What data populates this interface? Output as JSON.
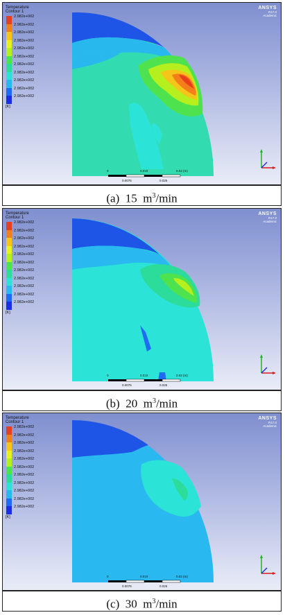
{
  "panels": [
    {
      "legend": {
        "title": "Temperature",
        "subtitle": "Contour 1",
        "labels": [
          "2.982e+002",
          "2.982e+002",
          "2.982e+002",
          "2.982e+002",
          "2.982e+002",
          "2.982e+002",
          "2.982e+002",
          "2.982e+002",
          "2.982e+002",
          "2.982e+002",
          "2.982e+002"
        ],
        "unit": "[K]"
      },
      "brand": {
        "name": "ANSYS",
        "version": "R17.0",
        "edition": "Academic"
      },
      "scale": {
        "left": "0",
        "mid_top": "0.010",
        "right_top": "0.02 (m)",
        "low1": "0.0075",
        "low2": "0.025"
      },
      "caption": {
        "label": "(a)",
        "value": "15",
        "unit_pre": "m",
        "unit_exp": "3",
        "unit_post": "/min"
      }
    },
    {
      "legend": {
        "title": "Temperature",
        "subtitle": "Contour 1",
        "labels": [
          "2.982e+002",
          "2.982e+002",
          "2.982e+002",
          "2.982e+002",
          "2.982e+002",
          "2.982e+002",
          "2.982e+002",
          "2.982e+002",
          "2.982e+002",
          "2.982e+002",
          "2.982e+002"
        ],
        "unit": "[K]"
      },
      "brand": {
        "name": "ANSYS",
        "version": "R17.0",
        "edition": "Academic"
      },
      "scale": {
        "left": "0",
        "mid_top": "0.010",
        "right_top": "0.02 (m)",
        "low1": "0.0075",
        "low2": "0.025"
      },
      "caption": {
        "label": "(b)",
        "value": "20",
        "unit_pre": "m",
        "unit_exp": "3",
        "unit_post": "/min"
      }
    },
    {
      "legend": {
        "title": "Temperature",
        "subtitle": "Contour 1",
        "labels": [
          "2.982e+002",
          "2.982e+002",
          "2.982e+002",
          "2.982e+002",
          "2.982e+002",
          "2.982e+002",
          "2.982e+002",
          "2.982e+002",
          "2.982e+002",
          "2.982e+002",
          "2.982e+002"
        ],
        "unit": "[K]"
      },
      "brand": {
        "name": "ANSYS",
        "version": "R17.0",
        "edition": "Academic"
      },
      "scale": {
        "left": "0",
        "mid_top": "0.010",
        "right_top": "0.02 (m)",
        "low1": "0.0075",
        "low2": "0.025"
      },
      "caption": {
        "label": "(c)",
        "value": "30",
        "unit_pre": "m",
        "unit_exp": "3",
        "unit_post": "/min"
      }
    }
  ],
  "colors": {
    "legend_scale": [
      "#e8401c",
      "#f47f1a",
      "#f6c51a",
      "#e8f01e",
      "#b6ef1e",
      "#4fe24f",
      "#2bdc9a",
      "#2be3d6",
      "#29b9f0",
      "#1f6cf0",
      "#1a2fe0"
    ],
    "brand_text": "#ffffff"
  },
  "icons": {
    "axes_triad": "xyz-triad-icon"
  }
}
